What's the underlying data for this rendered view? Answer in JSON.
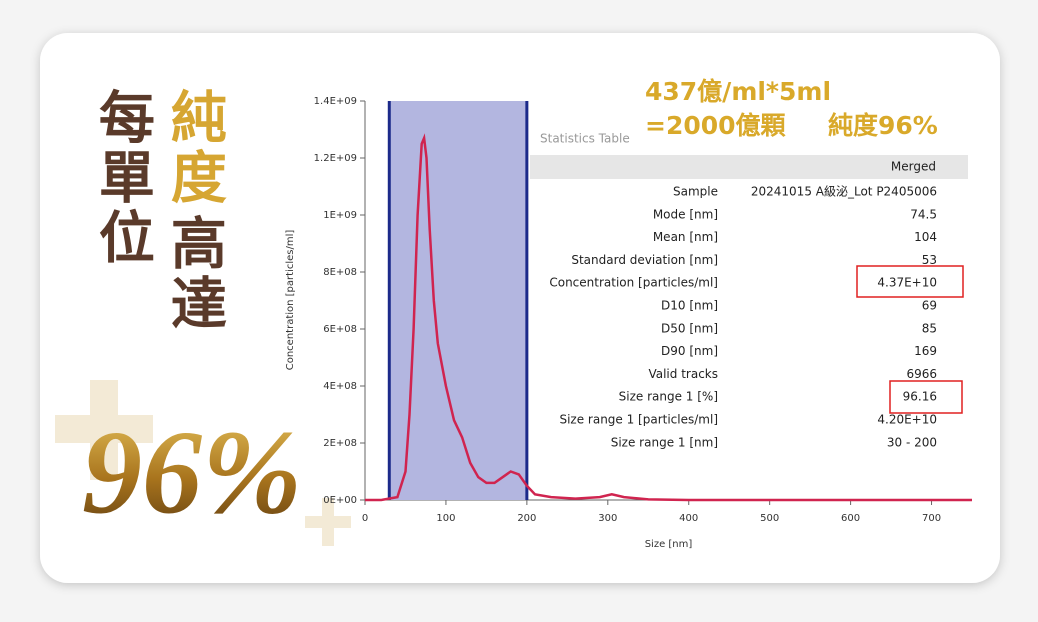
{
  "headline": {
    "line1": "每單位",
    "line2_gold": "純度",
    "line2_brown": "高達",
    "big": "96%"
  },
  "annotation": {
    "line1": "437億/ml*5ml",
    "line2": "=2000億顆",
    "purity": "純度96%"
  },
  "chart_data": {
    "type": "line",
    "x_label": "Size [nm]",
    "y_label": "Concentration [particles/ml]",
    "x": [
      0,
      20,
      40,
      50,
      55,
      60,
      65,
      70,
      73,
      76,
      80,
      85,
      90,
      100,
      110,
      120,
      130,
      140,
      150,
      160,
      170,
      180,
      190,
      200,
      210,
      230,
      260,
      290,
      305,
      320,
      350,
      400,
      500,
      600,
      700,
      750
    ],
    "values": [
      0,
      0,
      10000000.0,
      100000000.0,
      300000000.0,
      600000000.0,
      1000000000.0,
      1250000000.0,
      1270000000.0,
      1200000000.0,
      950000000.0,
      700000000.0,
      550000000.0,
      400000000.0,
      280000000.0,
      220000000.0,
      130000000.0,
      80000000.0,
      60000000.0,
      60000000.0,
      80000000.0,
      100000000.0,
      90000000.0,
      50000000.0,
      20000000.0,
      10000000.0,
      5000000.0,
      10000000.0,
      20000000.0,
      10000000.0,
      2000000.0,
      0,
      0,
      0,
      0,
      0
    ],
    "color": "#d0244f",
    "range": [
      30,
      200
    ],
    "range_color": "#1c2a8a",
    "xlim": [
      0,
      750
    ],
    "xticks": [
      0,
      100,
      200,
      300,
      400,
      500,
      600,
      700
    ],
    "ylim": [
      0,
      1400000000.0
    ],
    "yticks": [
      {
        "value": 0,
        "label": "0E+00"
      },
      {
        "value": 200000000.0,
        "label": "2E+08"
      },
      {
        "value": 400000000.0,
        "label": "4E+08"
      },
      {
        "value": 600000000.0,
        "label": "6E+08"
      },
      {
        "value": 800000000.0,
        "label": "8E+08"
      },
      {
        "value": 1000000000.0,
        "label": "1E+09"
      },
      {
        "value": 1200000000.0,
        "label": "1.2E+09"
      },
      {
        "value": 1400000000.0,
        "label": "1.4E+09"
      }
    ]
  },
  "statistics_table": {
    "title": "Statistics Table",
    "column": "Merged",
    "rows": [
      [
        "Sample",
        "20241015 A級泌_Lot P2405006"
      ],
      [
        "Mode [nm]",
        "74.5"
      ],
      [
        "Mean [nm]",
        "104"
      ],
      [
        "Standard deviation [nm]",
        "53"
      ],
      [
        "Concentration [particles/ml]",
        "4.37E+10"
      ],
      [
        "D10 [nm]",
        "69"
      ],
      [
        "D50 [nm]",
        "85"
      ],
      [
        "D90 [nm]",
        "169"
      ],
      [
        "Valid tracks",
        "6966"
      ],
      [
        "Size range 1 [%]",
        "96.16"
      ],
      [
        "Size range 1 [particles/ml]",
        "4.20E+10"
      ],
      [
        "Size range 1 [nm]",
        "30 - 200"
      ]
    ]
  }
}
